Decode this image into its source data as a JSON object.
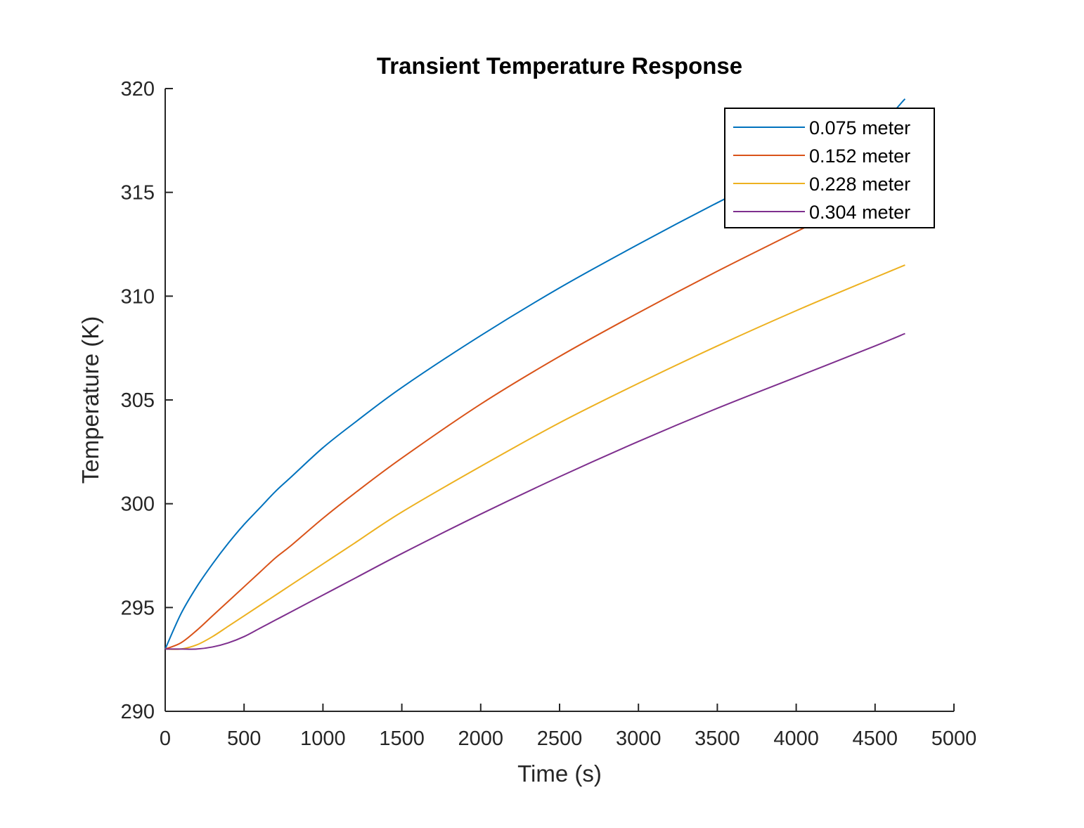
{
  "chart_data": {
    "type": "line",
    "title": "Transient Temperature Response",
    "xlabel": "Time (s)",
    "ylabel": "Temperature (K)",
    "xlim": [
      0,
      5000
    ],
    "ylim": [
      290,
      320
    ],
    "xticks": [
      "0",
      "500",
      "1000",
      "1500",
      "2000",
      "2500",
      "3000",
      "3500",
      "4000",
      "4500",
      "5000"
    ],
    "yticks": [
      "290",
      "295",
      "300",
      "305",
      "310",
      "315",
      "320"
    ],
    "grid": false,
    "legend_position": "top-right",
    "x": [
      0,
      100,
      200,
      300,
      400,
      500,
      600,
      700,
      800,
      1000,
      1200,
      1500,
      2000,
      2500,
      3000,
      3500,
      4000,
      4500,
      4690
    ],
    "series": [
      {
        "name": "0.075 meter",
        "color": "#0072BD",
        "values": [
          293.0,
          294.7,
          296.0,
          297.1,
          298.1,
          299.0,
          299.8,
          300.6,
          301.3,
          302.7,
          303.9,
          305.6,
          308.1,
          310.4,
          312.5,
          314.5,
          316.4,
          318.2,
          319.5
        ]
      },
      {
        "name": "0.152 meter",
        "color": "#D95319",
        "values": [
          293.0,
          293.3,
          293.9,
          294.6,
          295.3,
          296.0,
          296.7,
          297.4,
          298.0,
          299.3,
          300.5,
          302.2,
          304.8,
          307.1,
          309.2,
          311.2,
          313.1,
          315.0,
          315.7
        ]
      },
      {
        "name": "0.228 meter",
        "color": "#EDB120",
        "values": [
          293.0,
          293.0,
          293.2,
          293.6,
          294.1,
          294.6,
          295.1,
          295.6,
          296.1,
          297.1,
          298.1,
          299.6,
          301.8,
          303.9,
          305.8,
          307.6,
          309.3,
          310.9,
          311.5
        ]
      },
      {
        "name": "0.304 meter",
        "color": "#7E2F8E",
        "values": [
          293.0,
          293.0,
          293.0,
          293.1,
          293.3,
          293.6,
          294.0,
          294.4,
          294.8,
          295.6,
          296.4,
          297.6,
          299.5,
          301.3,
          303.0,
          304.6,
          306.1,
          307.6,
          308.2
        ]
      }
    ]
  }
}
